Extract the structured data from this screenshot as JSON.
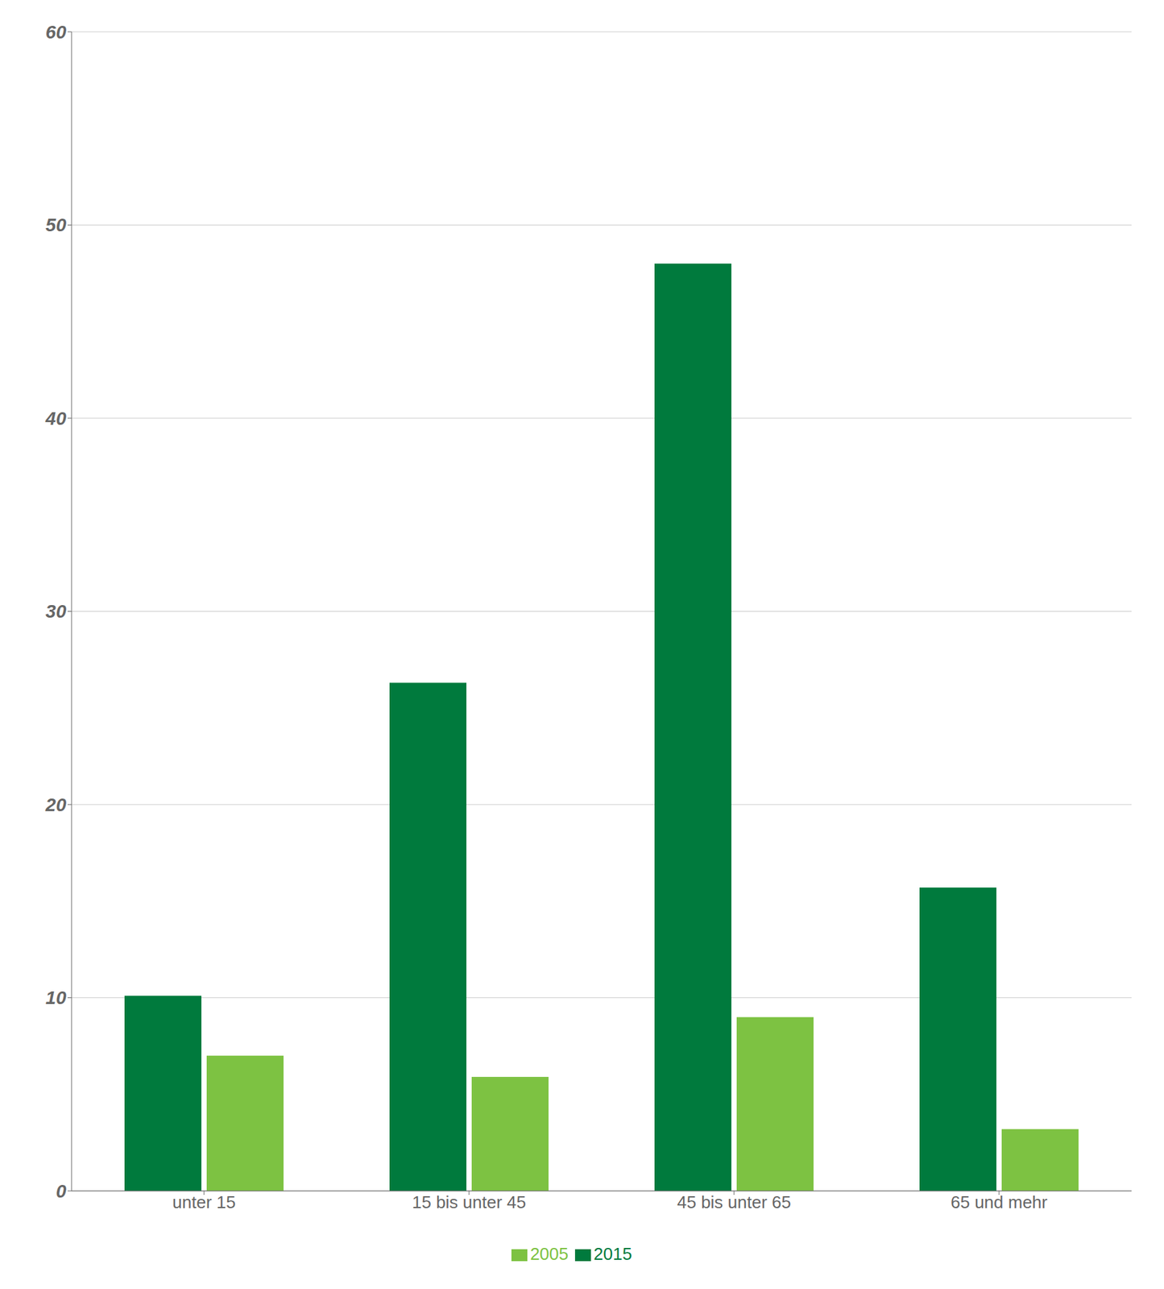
{
  "chart_data": {
    "type": "bar",
    "categories": [
      "unter 15",
      "15 bis unter 45",
      "45 bis unter 65",
      "65 und mehr"
    ],
    "series": [
      {
        "name": "2015",
        "color": "#007A3D",
        "values": [
          10.1,
          26.3,
          48.0,
          15.7
        ]
      },
      {
        "name": "2005",
        "color": "#7DC242",
        "values": [
          7.0,
          5.9,
          9.0,
          3.2
        ]
      }
    ],
    "ylim": [
      0,
      60
    ],
    "yticks": [
      0,
      10,
      20,
      30,
      40,
      50,
      60
    ],
    "grid": true,
    "legend": "bottom"
  }
}
